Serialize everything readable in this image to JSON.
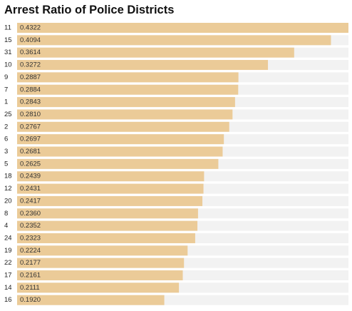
{
  "page": {
    "title": "Arrest Ratio of Police Districts"
  },
  "colors": {
    "bar": "#ebcb98",
    "track": "#f2f2f2"
  },
  "chart_data": {
    "type": "bar",
    "orientation": "horizontal",
    "title": "Arrest Ratio of Police Districts",
    "xlabel": "",
    "ylabel": "",
    "grid": false,
    "xlim": [
      0,
      0.4322
    ],
    "categories": [
      "11",
      "15",
      "31",
      "10",
      "9",
      "7",
      "1",
      "25",
      "2",
      "6",
      "3",
      "5",
      "18",
      "12",
      "20",
      "8",
      "4",
      "24",
      "19",
      "22",
      "17",
      "14",
      "16"
    ],
    "values": [
      0.4322,
      0.4094,
      0.3614,
      0.3272,
      0.2887,
      0.2884,
      0.2843,
      0.281,
      0.2767,
      0.2697,
      0.2681,
      0.2625,
      0.2439,
      0.2431,
      0.2417,
      0.236,
      0.2352,
      0.2323,
      0.2224,
      0.2177,
      0.2161,
      0.2111,
      0.192
    ],
    "value_labels": [
      "0.4322",
      "0.4094",
      "0.3614",
      "0.3272",
      "0.2887",
      "0.2884",
      "0.2843",
      "0.2810",
      "0.2767",
      "0.2697",
      "0.2681",
      "0.2625",
      "0.2439",
      "0.2431",
      "0.2417",
      "0.2360",
      "0.2352",
      "0.2323",
      "0.2224",
      "0.2177",
      "0.2161",
      "0.2111",
      "0.1920"
    ]
  }
}
